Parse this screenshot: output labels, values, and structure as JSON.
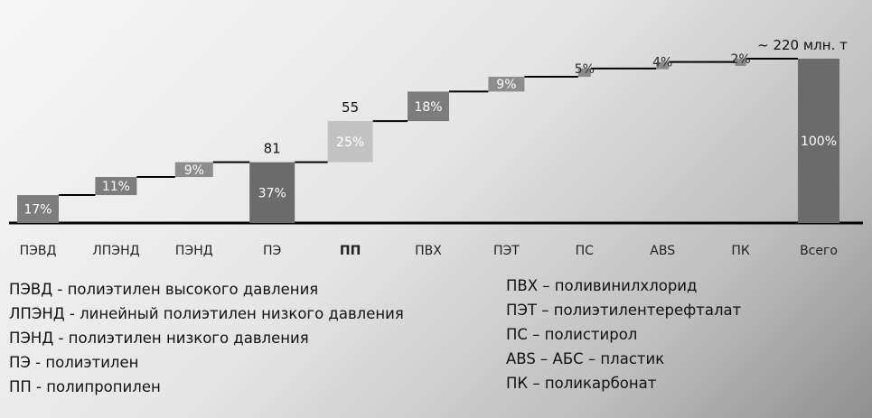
{
  "chart_data": {
    "type": "waterfall",
    "title": "",
    "categories": [
      "ПЭВД",
      "ЛПЭНД",
      "ПЭНД",
      "ПЭ",
      "ПП",
      "ПВХ",
      "ПЭТ",
      "ПС",
      "ABS",
      "ПК",
      "Всего"
    ],
    "values_percent": [
      17,
      11,
      9,
      37,
      25,
      18,
      9,
      5,
      4,
      2,
      100
    ],
    "value_labels": [
      "17%",
      "11%",
      "9%",
      "37%",
      "25%",
      "18%",
      "9%",
      "5%",
      "4%",
      "2%",
      "100%"
    ],
    "totals": [
      "ПЭ",
      "Всего"
    ],
    "annotations": [
      {
        "category": "ПЭ",
        "text": "81"
      },
      {
        "category": "ПП",
        "text": "55"
      },
      {
        "category": "Всего",
        "text": "~ 220 млн. т"
      }
    ],
    "highlighted_category": "ПП",
    "colors": {
      "dark": "#6b6b6b",
      "mid": "#7d7d7d",
      "light": "#c2c2c2",
      "small": "#8a8a8a",
      "line": "#000000"
    }
  },
  "legend_left": [
    "ПЭВД - полиэтилен высокого давления",
    "ЛПЭНД - линейный полиэтилен низкого давления",
    "ПЭНД - полиэтилен низкого давления",
    "ПЭ - полиэтилен",
    "ПП - полипропилен"
  ],
  "legend_right": [
    "ПВХ – поливинилхлорид",
    "ПЭТ – полиэтилентерефталат",
    "ПС – полистирол",
    "ABS – АБС – пластик",
    "ПК – поликарбонат"
  ]
}
